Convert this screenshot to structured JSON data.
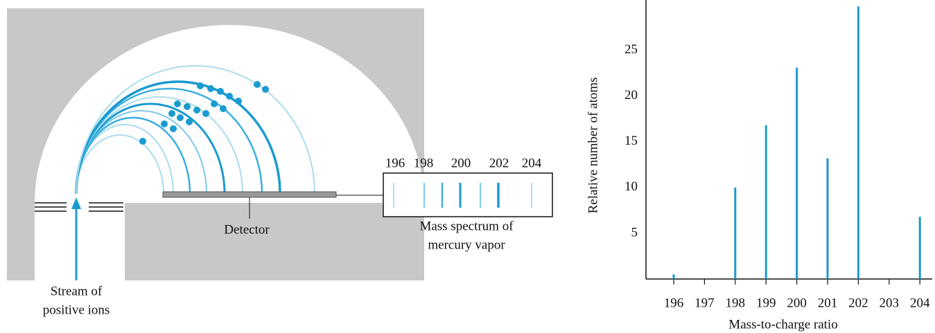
{
  "diagram": {
    "stream_caption": [
      "Stream of",
      "positive ions"
    ],
    "detector": "Detector",
    "spectrum_ticks": [
      "196",
      "198",
      "200",
      "202",
      "204"
    ],
    "spectrum_caption": [
      "Mass spectrum of",
      "mercury vapor"
    ]
  },
  "chart_data": {
    "type": "bar",
    "y_label": "Relative number of atoms",
    "x_label": "Mass-to-charge ratio",
    "categories": [
      "196",
      "197",
      "198",
      "199",
      "200",
      "201",
      "202",
      "203",
      "204"
    ],
    "values": [
      0.5,
      null,
      10,
      16.8,
      23.1,
      13.2,
      29.8,
      null,
      6.8
    ],
    "color": "#1a9bd0",
    "ylim": [
      0,
      30.5
    ],
    "yticks": [
      5,
      10,
      15,
      20,
      25
    ]
  }
}
